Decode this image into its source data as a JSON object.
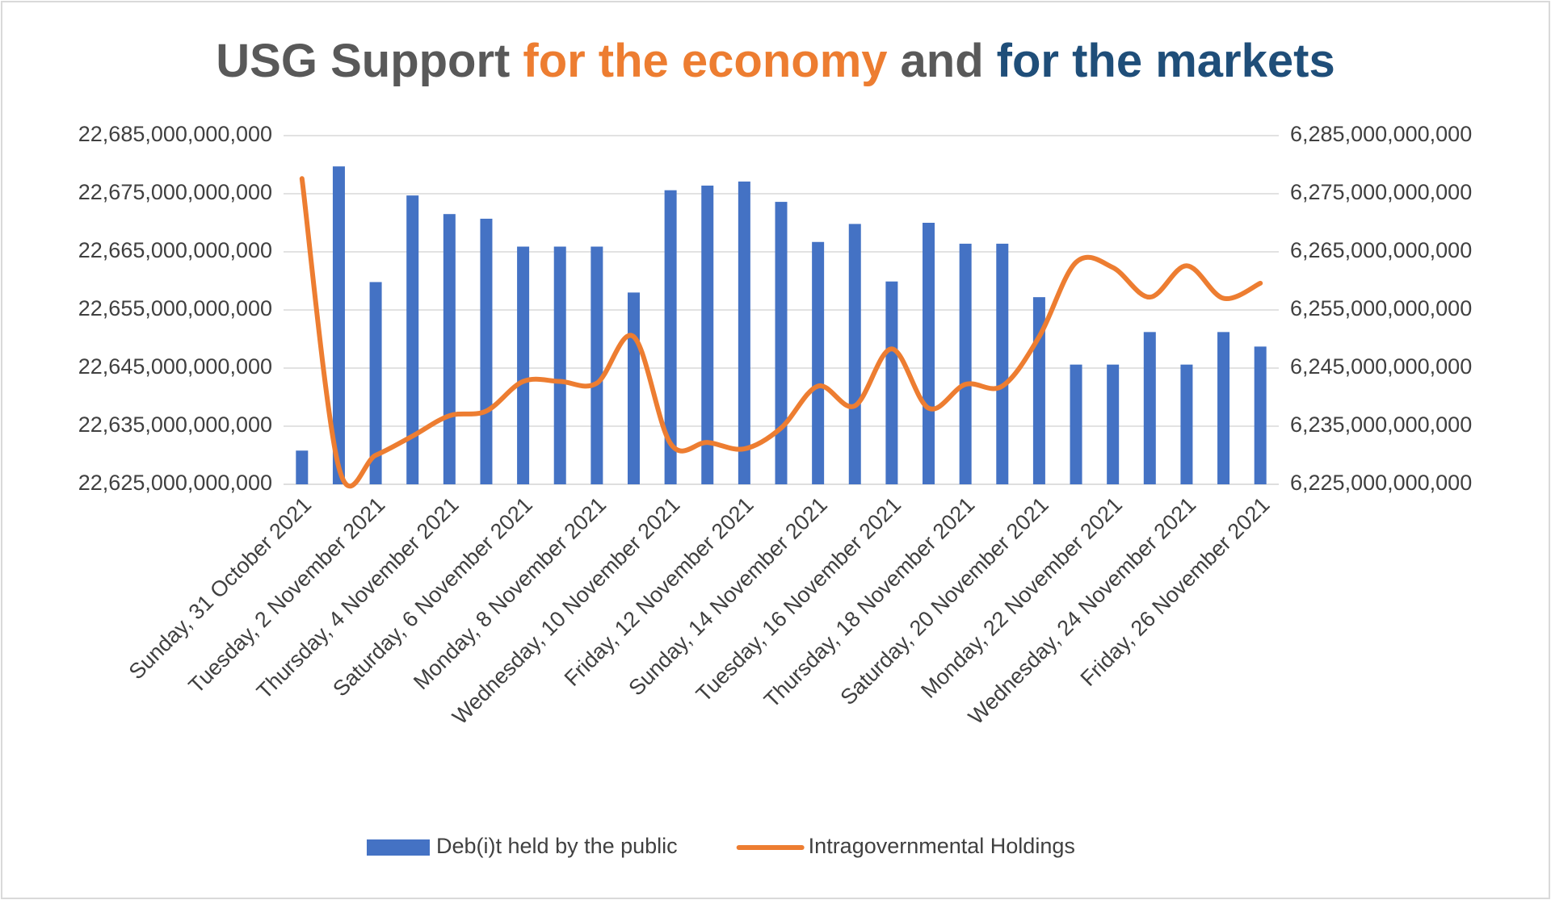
{
  "chart_data": {
    "type": "bar_line",
    "title": [
      {
        "text": "USG Support",
        "color": "#595959"
      },
      {
        "text": "for the economy",
        "color": "#ed7d31"
      },
      {
        "text": "and",
        "color": "#595959"
      },
      {
        "text": "for the markets",
        "color": "#1f4e79"
      }
    ],
    "categories": [
      "Sunday, 31 October  2021",
      null,
      "Tuesday, 2 November  2021",
      null,
      "Thursday, 4 November  2021",
      null,
      "Saturday, 6 November  2021",
      null,
      "Monday, 8 November  2021",
      null,
      "Wednesday, 10 November  2021",
      null,
      "Friday, 12 November  2021",
      null,
      "Sunday, 14 November  2021",
      null,
      "Tuesday, 16 November  2021",
      null,
      "Thursday, 18 November  2021",
      null,
      "Saturday, 20 November  2021",
      null,
      "Monday, 22 November  2021",
      null,
      "Wednesday, 24 November  2021",
      null,
      "Friday, 26 November  2021"
    ],
    "series": [
      {
        "name": "Deb(i)t held by the public",
        "color": "#4472c4",
        "kind": "bar",
        "values": [
          22630800000000,
          22679700000000,
          22659800000000,
          22674700000000,
          22671500000000,
          22670700000000,
          22665900000000,
          22665900000000,
          22665900000000,
          22658000000000,
          22675600000000,
          22676400000000,
          22677100000000,
          22673600000000,
          22666700000000,
          22669800000000,
          22659900000000,
          22670000000000,
          22666400000000,
          22666400000000,
          22657200000000,
          22645600000000,
          22645600000000,
          22651200000000,
          22645600000000,
          22651200000000,
          22648700000000
        ]
      },
      {
        "name": "Intragovernmental Holdings",
        "color": "#ed7d31",
        "kind": "line",
        "axis": "y2",
        "values": [
          6277600000000,
          6227900000000,
          6230000000000,
          6233300000000,
          6236800000000,
          6237600000000,
          6242700000000,
          6242700000000,
          6242400000000,
          6250400000000,
          6232000000000,
          6232200000000,
          6231100000000,
          6234700000000,
          6241900000000,
          6238500000000,
          6248300000000,
          6238100000000,
          6242200000000,
          6241900000000,
          6250400000000,
          6263200000000,
          6262300000000,
          6257200000000,
          6262600000000,
          6257000000000,
          6259600000000
        ]
      }
    ],
    "ylim": [
      22625000000000,
      22685000000000
    ],
    "yticks": [
      {
        "value": 22625000000000,
        "label": "22,625,000,000,000"
      },
      {
        "value": 22635000000000,
        "label": "22,635,000,000,000"
      },
      {
        "value": 22645000000000,
        "label": "22,645,000,000,000"
      },
      {
        "value": 22655000000000,
        "label": "22,655,000,000,000"
      },
      {
        "value": 22665000000000,
        "label": "22,665,000,000,000"
      },
      {
        "value": 22675000000000,
        "label": "22,675,000,000,000"
      },
      {
        "value": 22685000000000,
        "label": "22,685,000,000,000"
      }
    ],
    "y2lim": [
      6225000000000,
      6285000000000
    ],
    "y2ticks": [
      {
        "value": 6225000000000,
        "label": "6,225,000,000,000"
      },
      {
        "value": 6235000000000,
        "label": "6,235,000,000,000"
      },
      {
        "value": 6245000000000,
        "label": "6,245,000,000,000"
      },
      {
        "value": 6255000000000,
        "label": "6,255,000,000,000"
      },
      {
        "value": 6265000000000,
        "label": "6,265,000,000,000"
      },
      {
        "value": 6275000000000,
        "label": "6,275,000,000,000"
      },
      {
        "value": 6285000000000,
        "label": "6,285,000,000,000"
      }
    ],
    "grid": true,
    "legend": "bottom"
  }
}
